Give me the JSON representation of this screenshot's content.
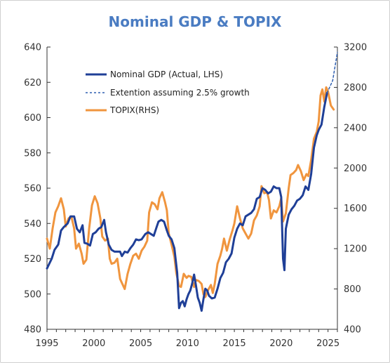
{
  "chart_data": {
    "type": "line",
    "title": "Nominal GDP & TOPIX",
    "xlabel": "",
    "ylabel": "",
    "y2label": "",
    "xlim": [
      1995,
      2026
    ],
    "ylim": [
      480,
      640
    ],
    "y2lim": [
      400,
      3200
    ],
    "x_ticks": [
      "1995",
      "2000",
      "2005",
      "2010",
      "2015",
      "2020",
      "2025"
    ],
    "y_ticks": [
      "480",
      "500",
      "520",
      "540",
      "560",
      "580",
      "600",
      "620",
      "640"
    ],
    "y2_ticks": [
      "400",
      "800",
      "1200",
      "1600",
      "2000",
      "2400",
      "2800",
      "3200"
    ],
    "grid": false,
    "legend_position": "top-left",
    "series": [
      {
        "name": "Nominal GDP (Actual, LHS)",
        "axis": "left",
        "color": "#1f3f97",
        "style": "solid",
        "points": [
          [
            1995.0,
            514.5
          ],
          [
            1995.5,
            520
          ],
          [
            1995.8,
            525
          ],
          [
            1996.2,
            528
          ],
          [
            1996.5,
            536
          ],
          [
            1996.8,
            538
          ],
          [
            1997.2,
            540
          ],
          [
            1997.5,
            544
          ],
          [
            1997.9,
            544
          ],
          [
            1998.2,
            537
          ],
          [
            1998.5,
            535
          ],
          [
            1998.8,
            539
          ],
          [
            1999.0,
            529
          ],
          [
            1999.3,
            528.5
          ],
          [
            1999.6,
            527.5
          ],
          [
            1999.9,
            534
          ],
          [
            2000.2,
            535
          ],
          [
            2000.5,
            537
          ],
          [
            2000.8,
            538
          ],
          [
            2001.1,
            542
          ],
          [
            2001.3,
            535
          ],
          [
            2001.6,
            528
          ],
          [
            2001.9,
            525
          ],
          [
            2002.2,
            524
          ],
          [
            2002.5,
            524
          ],
          [
            2002.8,
            524
          ],
          [
            2003.0,
            521.5
          ],
          [
            2003.3,
            524
          ],
          [
            2003.6,
            523.5
          ],
          [
            2003.9,
            526
          ],
          [
            2004.2,
            528
          ],
          [
            2004.5,
            531
          ],
          [
            2004.8,
            530.5
          ],
          [
            2005.1,
            531
          ],
          [
            2005.5,
            534
          ],
          [
            2005.8,
            535
          ],
          [
            2006.1,
            534
          ],
          [
            2006.4,
            533
          ],
          [
            2006.7,
            538
          ],
          [
            2006.9,
            541
          ],
          [
            2007.2,
            542
          ],
          [
            2007.5,
            541
          ],
          [
            2007.8,
            536
          ],
          [
            2008.0,
            533
          ],
          [
            2008.3,
            531
          ],
          [
            2008.6,
            526
          ],
          [
            2008.9,
            512
          ],
          [
            2009.1,
            492
          ],
          [
            2009.3,
            495
          ],
          [
            2009.5,
            496
          ],
          [
            2009.7,
            493
          ],
          [
            2009.9,
            497
          ],
          [
            2010.1,
            500
          ],
          [
            2010.3,
            502
          ],
          [
            2010.5,
            506
          ],
          [
            2010.7,
            511
          ],
          [
            2010.9,
            505
          ],
          [
            2011.1,
            498
          ],
          [
            2011.3,
            495
          ],
          [
            2011.5,
            490.5
          ],
          [
            2011.7,
            497
          ],
          [
            2011.9,
            503
          ],
          [
            2012.1,
            502
          ],
          [
            2012.3,
            499
          ],
          [
            2012.6,
            497.5
          ],
          [
            2012.9,
            498
          ],
          [
            2013.2,
            503
          ],
          [
            2013.5,
            509
          ],
          [
            2013.8,
            512
          ],
          [
            2014.1,
            518
          ],
          [
            2014.4,
            520
          ],
          [
            2014.7,
            523
          ],
          [
            2015.0,
            532
          ],
          [
            2015.3,
            537
          ],
          [
            2015.6,
            540
          ],
          [
            2015.9,
            539
          ],
          [
            2016.2,
            544
          ],
          [
            2016.5,
            545
          ],
          [
            2016.8,
            546
          ],
          [
            2017.1,
            548
          ],
          [
            2017.4,
            554
          ],
          [
            2017.7,
            555
          ],
          [
            2018.0,
            560
          ],
          [
            2018.3,
            559
          ],
          [
            2018.6,
            557
          ],
          [
            2018.9,
            558
          ],
          [
            2019.2,
            561
          ],
          [
            2019.5,
            560
          ],
          [
            2019.8,
            560
          ],
          [
            2020.0,
            555
          ],
          [
            2020.2,
            520
          ],
          [
            2020.35,
            513.5
          ],
          [
            2020.5,
            537
          ],
          [
            2020.8,
            545
          ],
          [
            2021.1,
            548
          ],
          [
            2021.4,
            550
          ],
          [
            2021.7,
            553
          ],
          [
            2022.0,
            554
          ],
          [
            2022.3,
            556
          ],
          [
            2022.6,
            561
          ],
          [
            2022.9,
            559
          ],
          [
            2023.2,
            568
          ],
          [
            2023.5,
            583
          ],
          [
            2023.8,
            590
          ],
          [
            2024.0,
            593
          ],
          [
            2024.3,
            596
          ],
          [
            2024.6,
            606
          ],
          [
            2024.9,
            614
          ]
        ]
      },
      {
        "name": "Extention assuming 2.5% growth",
        "axis": "left",
        "color": "#2f5fb0",
        "style": "dashed",
        "points": [
          [
            2024.9,
            614
          ],
          [
            2025.5,
            621
          ],
          [
            2026.0,
            637
          ]
        ]
      },
      {
        "name": "TOPIX(RHS)",
        "axis": "right",
        "color": "#f0953e",
        "style": "solid",
        "points": [
          [
            1995.0,
            1300
          ],
          [
            1995.3,
            1200
          ],
          [
            1995.6,
            1400
          ],
          [
            1995.9,
            1560
          ],
          [
            1996.2,
            1620
          ],
          [
            1996.5,
            1700
          ],
          [
            1996.8,
            1590
          ],
          [
            1997.0,
            1420
          ],
          [
            1997.3,
            1500
          ],
          [
            1997.6,
            1520
          ],
          [
            1997.9,
            1400
          ],
          [
            1998.1,
            1200
          ],
          [
            1998.4,
            1250
          ],
          [
            1998.7,
            1150
          ],
          [
            1998.9,
            1050
          ],
          [
            1999.2,
            1090
          ],
          [
            1999.5,
            1400
          ],
          [
            1999.8,
            1630
          ],
          [
            2000.1,
            1720
          ],
          [
            2000.4,
            1650
          ],
          [
            2000.7,
            1500
          ],
          [
            2000.9,
            1320
          ],
          [
            2001.2,
            1280
          ],
          [
            2001.5,
            1300
          ],
          [
            2001.7,
            1100
          ],
          [
            2001.9,
            1050
          ],
          [
            2002.2,
            1060
          ],
          [
            2002.5,
            1100
          ],
          [
            2002.8,
            900
          ],
          [
            2003.0,
            860
          ],
          [
            2003.3,
            800
          ],
          [
            2003.6,
            950
          ],
          [
            2003.9,
            1050
          ],
          [
            2004.2,
            1130
          ],
          [
            2004.5,
            1150
          ],
          [
            2004.8,
            1100
          ],
          [
            2005.1,
            1180
          ],
          [
            2005.4,
            1220
          ],
          [
            2005.7,
            1280
          ],
          [
            2005.9,
            1560
          ],
          [
            2006.2,
            1660
          ],
          [
            2006.5,
            1640
          ],
          [
            2006.8,
            1590
          ],
          [
            2007.0,
            1700
          ],
          [
            2007.3,
            1760
          ],
          [
            2007.6,
            1660
          ],
          [
            2007.8,
            1580
          ],
          [
            2008.0,
            1350
          ],
          [
            2008.3,
            1240
          ],
          [
            2008.6,
            1120
          ],
          [
            2008.8,
            960
          ],
          [
            2009.1,
            830
          ],
          [
            2009.3,
            820
          ],
          [
            2009.6,
            950
          ],
          [
            2009.9,
            910
          ],
          [
            2010.1,
            930
          ],
          [
            2010.4,
            920
          ],
          [
            2010.7,
            820
          ],
          [
            2010.9,
            890
          ],
          [
            2011.2,
            880
          ],
          [
            2011.5,
            850
          ],
          [
            2011.7,
            750
          ],
          [
            2011.9,
            720
          ],
          [
            2012.2,
            790
          ],
          [
            2012.5,
            840
          ],
          [
            2012.7,
            760
          ],
          [
            2012.9,
            850
          ],
          [
            2013.2,
            1050
          ],
          [
            2013.5,
            1130
          ],
          [
            2013.7,
            1200
          ],
          [
            2013.9,
            1300
          ],
          [
            2014.2,
            1180
          ],
          [
            2014.5,
            1290
          ],
          [
            2014.8,
            1380
          ],
          [
            2015.0,
            1450
          ],
          [
            2015.3,
            1620
          ],
          [
            2015.6,
            1500
          ],
          [
            2015.9,
            1400
          ],
          [
            2016.2,
            1350
          ],
          [
            2016.5,
            1300
          ],
          [
            2016.8,
            1350
          ],
          [
            2017.1,
            1480
          ],
          [
            2017.4,
            1530
          ],
          [
            2017.7,
            1620
          ],
          [
            2017.9,
            1820
          ],
          [
            2018.2,
            1750
          ],
          [
            2018.5,
            1760
          ],
          [
            2018.7,
            1680
          ],
          [
            2018.9,
            1500
          ],
          [
            2019.2,
            1580
          ],
          [
            2019.5,
            1560
          ],
          [
            2019.8,
            1620
          ],
          [
            2020.0,
            1700
          ],
          [
            2020.2,
            1470
          ],
          [
            2020.5,
            1550
          ],
          [
            2020.8,
            1800
          ],
          [
            2021.0,
            1930
          ],
          [
            2021.3,
            1950
          ],
          [
            2021.6,
            1980
          ],
          [
            2021.8,
            2030
          ],
          [
            2022.1,
            1970
          ],
          [
            2022.4,
            1880
          ],
          [
            2022.7,
            1940
          ],
          [
            2022.9,
            1920
          ],
          [
            2023.2,
            2080
          ],
          [
            2023.5,
            2290
          ],
          [
            2023.8,
            2360
          ],
          [
            2024.0,
            2460
          ],
          [
            2024.2,
            2720
          ],
          [
            2024.4,
            2780
          ],
          [
            2024.6,
            2660
          ],
          [
            2024.8,
            2800
          ],
          [
            2025.0,
            2760
          ],
          [
            2025.3,
            2620
          ],
          [
            2025.6,
            2580
          ]
        ]
      }
    ]
  }
}
